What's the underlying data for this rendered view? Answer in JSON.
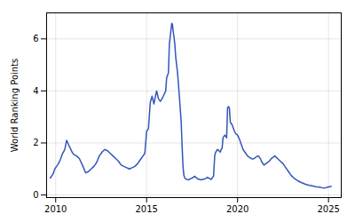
{
  "chart_data": {
    "type": "line",
    "ylabel": "World Ranking Points",
    "color": "#3355bb",
    "xlim": [
      2009.5,
      2025.7
    ],
    "ylim": [
      -0.1,
      7.0
    ],
    "xticks": [
      2010,
      2015,
      2020,
      2025
    ],
    "yticks": [
      0,
      2,
      4,
      6
    ],
    "grid": true,
    "x": [
      2009.7,
      2009.85,
      2009.95,
      2010.05,
      2010.15,
      2010.25,
      2010.35,
      2010.5,
      2010.6,
      2010.7,
      2010.8,
      2010.9,
      2011.0,
      2011.15,
      2011.3,
      2011.5,
      2011.65,
      2011.8,
      2011.95,
      2012.1,
      2012.25,
      2012.4,
      2012.55,
      2012.7,
      2012.85,
      2013.0,
      2013.15,
      2013.3,
      2013.45,
      2013.6,
      2013.75,
      2013.9,
      2014.05,
      2014.2,
      2014.35,
      2014.5,
      2014.65,
      2014.8,
      2014.9,
      2015.0,
      2015.1,
      2015.2,
      2015.3,
      2015.35,
      2015.4,
      2015.5,
      2015.55,
      2015.6,
      2015.65,
      2015.75,
      2015.85,
      2015.95,
      2016.05,
      2016.1,
      2016.2,
      2016.25,
      2016.3,
      2016.35,
      2016.38,
      2016.42,
      2016.45,
      2016.5,
      2016.55,
      2016.6,
      2016.7,
      2016.8,
      2016.9,
      2016.95,
      2017.0,
      2017.05,
      2017.1,
      2017.15,
      2017.2,
      2017.3,
      2017.4,
      2017.5,
      2017.6,
      2017.65,
      2017.7,
      2017.75,
      2017.8,
      2017.9,
      2018.0,
      2018.1,
      2018.2,
      2018.3,
      2018.35,
      2018.4,
      2018.5,
      2018.55,
      2018.6,
      2018.65,
      2018.68,
      2018.7,
      2018.75,
      2018.8,
      2018.85,
      2018.9,
      2018.95,
      2019.0,
      2019.05,
      2019.1,
      2019.15,
      2019.2,
      2019.25,
      2019.3,
      2019.35,
      2019.4,
      2019.45,
      2019.5,
      2019.55,
      2019.6,
      2019.65,
      2019.7,
      2019.8,
      2019.9,
      2020.0,
      2020.1,
      2020.2,
      2020.3,
      2020.45,
      2020.55,
      2020.65,
      2020.75,
      2020.85,
      2020.95,
      2021.05,
      2021.15,
      2021.25,
      2021.35,
      2021.45,
      2021.55,
      2021.65,
      2021.75,
      2021.85,
      2021.95,
      2022.05,
      2022.2,
      2022.35,
      2022.5,
      2022.65,
      2022.8,
      2022.95,
      2023.1,
      2023.3,
      2023.5,
      2023.7,
      2023.9,
      2024.1,
      2024.3,
      2024.5,
      2024.65,
      2024.75,
      2024.85,
      2024.95,
      2025.05,
      2025.15
    ],
    "values": [
      0.65,
      0.8,
      1.0,
      1.1,
      1.2,
      1.35,
      1.55,
      1.75,
      2.1,
      1.95,
      1.8,
      1.65,
      1.55,
      1.5,
      1.4,
      1.1,
      0.85,
      0.9,
      1.0,
      1.1,
      1.25,
      1.5,
      1.65,
      1.75,
      1.7,
      1.6,
      1.5,
      1.4,
      1.3,
      1.15,
      1.1,
      1.05,
      1.0,
      1.05,
      1.1,
      1.2,
      1.35,
      1.5,
      1.6,
      2.45,
      2.55,
      3.55,
      3.8,
      3.65,
      3.5,
      3.85,
      4.0,
      3.85,
      3.7,
      3.6,
      3.7,
      3.85,
      4.0,
      4.5,
      4.7,
      5.8,
      6.1,
      6.4,
      6.6,
      6.55,
      6.35,
      6.1,
      5.8,
      5.3,
      4.7,
      3.8,
      2.8,
      1.9,
      1.1,
      0.75,
      0.65,
      0.62,
      0.6,
      0.58,
      0.62,
      0.65,
      0.7,
      0.72,
      0.68,
      0.65,
      0.62,
      0.6,
      0.58,
      0.6,
      0.62,
      0.65,
      0.68,
      0.65,
      0.62,
      0.6,
      0.65,
      0.7,
      0.72,
      1.0,
      1.55,
      1.65,
      1.7,
      1.75,
      1.72,
      1.68,
      1.65,
      1.75,
      1.8,
      2.2,
      2.25,
      2.3,
      2.25,
      2.2,
      3.35,
      3.4,
      3.35,
      2.8,
      2.75,
      2.7,
      2.5,
      2.35,
      2.3,
      2.15,
      1.95,
      1.75,
      1.6,
      1.5,
      1.45,
      1.4,
      1.38,
      1.42,
      1.48,
      1.5,
      1.4,
      1.25,
      1.15,
      1.2,
      1.25,
      1.3,
      1.4,
      1.45,
      1.5,
      1.4,
      1.3,
      1.2,
      1.05,
      0.9,
      0.75,
      0.65,
      0.55,
      0.48,
      0.42,
      0.38,
      0.35,
      0.32,
      0.3,
      0.28,
      0.27,
      0.28,
      0.3,
      0.32,
      0.33
    ]
  }
}
